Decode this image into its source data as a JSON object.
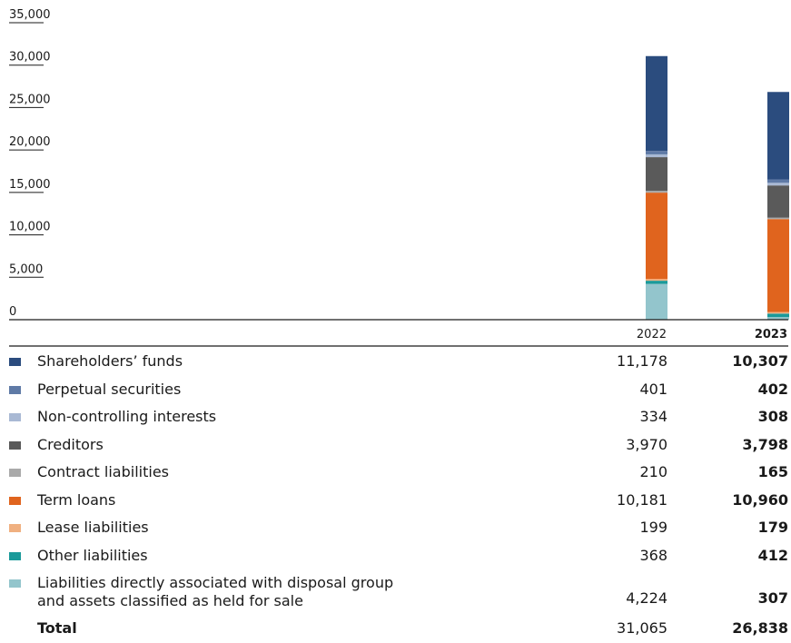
{
  "chart_data": {
    "type": "bar",
    "stacked": true,
    "categories": [
      "2022",
      "2023"
    ],
    "ylim": [
      0,
      35000
    ],
    "yticks": [
      "0",
      "5,000",
      "10,000",
      "15,000",
      "20,000",
      "25,000",
      "30,000",
      "35,000"
    ],
    "ytick_values": [
      0,
      5000,
      10000,
      15000,
      20000,
      25000,
      30000,
      35000
    ],
    "legend_placement": "table-below",
    "series": [
      {
        "name": "Liabilities directly associated with disposal group and assets classified as held for sale",
        "color": "#93c5cc",
        "values": [
          4224,
          307
        ]
      },
      {
        "name": "Other liabilities",
        "color": "#1a9a9a",
        "values": [
          368,
          412
        ]
      },
      {
        "name": "Lease liabilities",
        "color": "#f0b080",
        "values": [
          199,
          179
        ]
      },
      {
        "name": "Term loans",
        "color": "#e0641e",
        "values": [
          10181,
          10960
        ]
      },
      {
        "name": "Contract liabilities",
        "color": "#aaaaaa",
        "values": [
          210,
          165
        ]
      },
      {
        "name": "Creditors",
        "color": "#5a5a5a",
        "values": [
          3970,
          3798
        ]
      },
      {
        "name": "Non-controlling interests",
        "color": "#a9b9d4",
        "values": [
          334,
          308
        ]
      },
      {
        "name": "Perpetual securities",
        "color": "#5f7aa6",
        "values": [
          401,
          402
        ]
      },
      {
        "name": "Shareholders’ funds",
        "color": "#2b4c7e",
        "values": [
          11178,
          10307
        ]
      }
    ]
  },
  "table": {
    "col_2022": "2022",
    "col_2023": "2023",
    "rows": [
      {
        "label": "Shareholders’ funds",
        "v2022": "11,178",
        "v2023": "10,307",
        "color": "#2b4c7e"
      },
      {
        "label": "Perpetual securities",
        "v2022": "401",
        "v2023": "402",
        "color": "#5f7aa6"
      },
      {
        "label": "Non-controlling interests",
        "v2022": "334",
        "v2023": "308",
        "color": "#a9b9d4"
      },
      {
        "label": "Creditors",
        "v2022": "3,970",
        "v2023": "3,798",
        "color": "#5a5a5a"
      },
      {
        "label": "Contract liabilities",
        "v2022": "210",
        "v2023": "165",
        "color": "#aaaaaa"
      },
      {
        "label": "Term loans",
        "v2022": "10,181",
        "v2023": "10,960",
        "color": "#e0641e"
      },
      {
        "label": "Lease liabilities",
        "v2022": "199",
        "v2023": "179",
        "color": "#f0b080"
      },
      {
        "label": "Other liabilities",
        "v2022": "368",
        "v2023": "412",
        "color": "#1a9a9a"
      },
      {
        "label_line1": "Liabilities directly associated with disposal group",
        "label_line2": "and assets classified as held for sale",
        "v2022": "4,224",
        "v2023": "307",
        "color": "#93c5cc"
      }
    ],
    "total": {
      "label": "Total",
      "v2022": "31,065",
      "v2023": "26,838"
    }
  }
}
